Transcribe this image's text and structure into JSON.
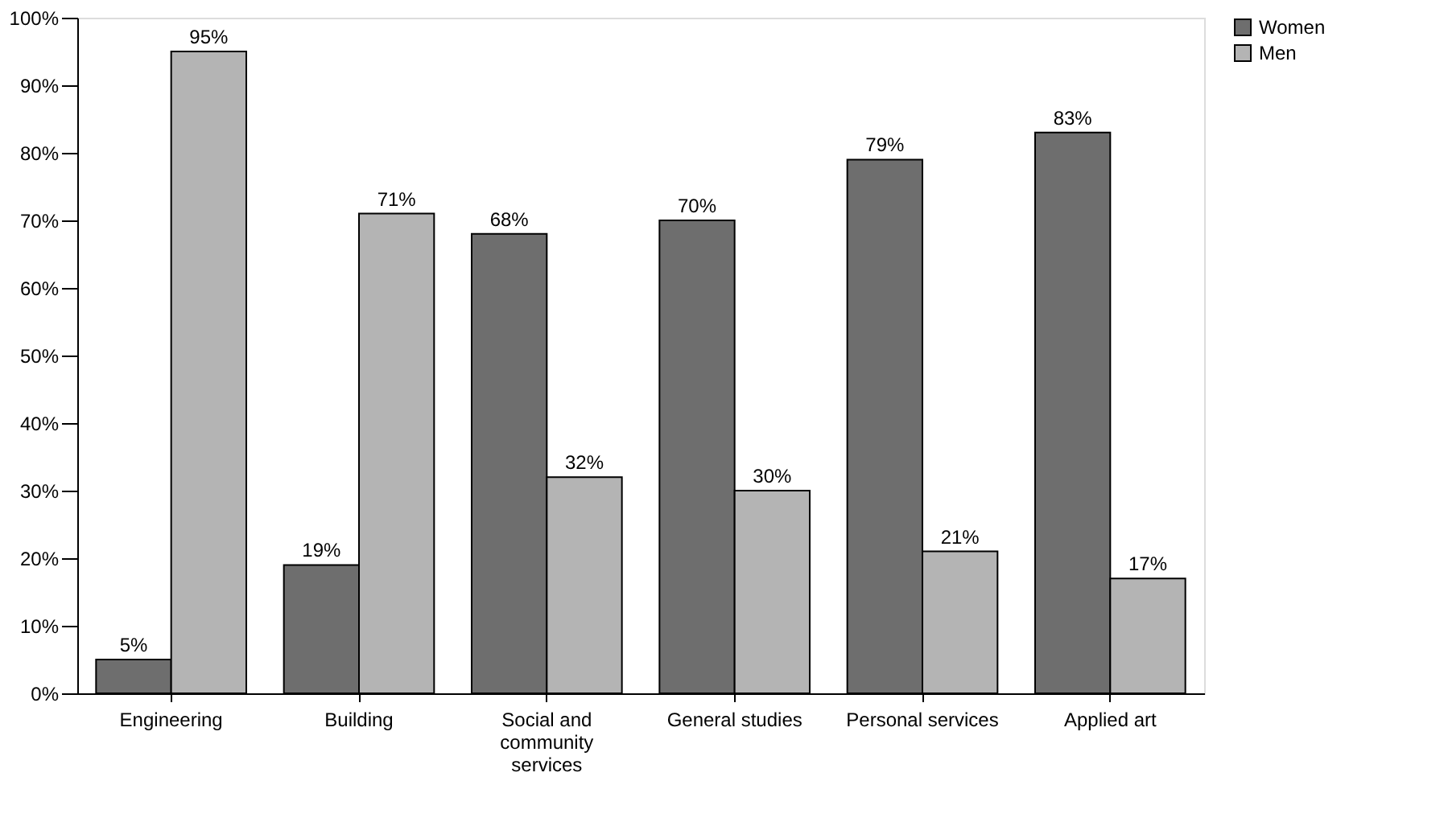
{
  "chart_data": {
    "type": "bar",
    "categories": [
      "Engineering",
      "Building",
      "Social and community services",
      "General studies",
      "Personal services",
      "Applied art"
    ],
    "series": [
      {
        "name": "Women",
        "color": "#6e6e6e",
        "values": [
          5,
          19,
          68,
          70,
          79,
          83
        ],
        "value_labels": [
          "5%",
          "19%",
          "68%",
          "70%",
          "79%",
          "83%"
        ]
      },
      {
        "name": "Men",
        "color": "#b4b4b4",
        "values": [
          95,
          71,
          32,
          30,
          21,
          17
        ],
        "value_labels": [
          "95%",
          "71%",
          "32%",
          "30%",
          "21%",
          "17%"
        ]
      }
    ],
    "ylim": [
      0,
      100
    ],
    "yticks": [
      {
        "value": 0,
        "label": "0%"
      },
      {
        "value": 10,
        "label": "10%"
      },
      {
        "value": 20,
        "label": "20%"
      },
      {
        "value": 30,
        "label": "30%"
      },
      {
        "value": 40,
        "label": "40%"
      },
      {
        "value": 50,
        "label": "50%"
      },
      {
        "value": 60,
        "label": "60%"
      },
      {
        "value": 70,
        "label": "70%"
      },
      {
        "value": 80,
        "label": "80%"
      },
      {
        "value": 90,
        "label": "90%"
      },
      {
        "value": 100,
        "label": "100%"
      }
    ],
    "grid": false,
    "legend": "right"
  }
}
